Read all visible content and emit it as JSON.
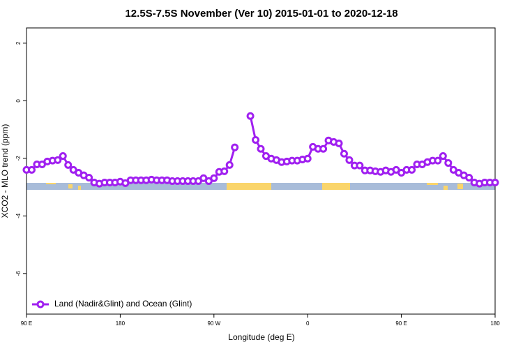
{
  "chart_data": {
    "type": "line",
    "title": "12.5S-7.5S November (Ver 10)   2015-01-01 to 2020-12-18",
    "x_label": "Longitude (deg E)",
    "y_label": "XCO2 - MLO trend (ppm)",
    "xlim": [
      90,
      540
    ],
    "xticks": [
      {
        "value": 90,
        "label": "90 E"
      },
      180,
      {
        "value": 270,
        "label": "90 W"
      },
      {
        "value": 360,
        "label": "0"
      },
      {
        "value": 450,
        "label": "90 E"
      },
      {
        "value": 540,
        "label": "180"
      }
    ],
    "ylim": [
      -7.41,
      2.53
    ],
    "yticks": [
      2,
      0,
      -2,
      -4,
      -6
    ],
    "legend": "bottom-left",
    "x": [
      90,
      95,
      100,
      105,
      110,
      115,
      120,
      125,
      130,
      135,
      140,
      145,
      150,
      155,
      160,
      165,
      170,
      175,
      180,
      185,
      190,
      195,
      200,
      205,
      210,
      215,
      220,
      225,
      230,
      235,
      240,
      245,
      250,
      255,
      260,
      265,
      270,
      275,
      280,
      285,
      290,
      295,
      300,
      305,
      310,
      315,
      320,
      325,
      330,
      335,
      340,
      345,
      350,
      355,
      360,
      365,
      370,
      375,
      380,
      385,
      390,
      395,
      400,
      405,
      410,
      415,
      420,
      425,
      430,
      435,
      440,
      445,
      450,
      455,
      460,
      465,
      470,
      475,
      480,
      485,
      490,
      495,
      500,
      505,
      510,
      515,
      520,
      525,
      530,
      535,
      540
    ],
    "series": [
      {
        "name": "Land (Nadir&Glint) and Ocean (Glint)",
        "color": "#a020f0",
        "values": [
          -2.4,
          -2.4,
          -2.21,
          -2.21,
          -2.11,
          -2.08,
          -2.06,
          -1.92,
          -2.23,
          -2.4,
          -2.5,
          -2.59,
          -2.67,
          -2.84,
          -2.88,
          -2.84,
          -2.84,
          -2.84,
          -2.81,
          -2.86,
          -2.76,
          -2.76,
          -2.76,
          -2.76,
          -2.74,
          -2.76,
          -2.76,
          -2.76,
          -2.79,
          -2.79,
          -2.79,
          -2.79,
          -2.79,
          -2.79,
          -2.69,
          -2.79,
          -2.69,
          -2.47,
          -2.45,
          -2.23,
          -1.62,
          null,
          null,
          -0.53,
          -1.36,
          -1.67,
          -1.92,
          -2.01,
          -2.06,
          -2.13,
          -2.11,
          -2.08,
          -2.08,
          -2.04,
          -2.01,
          -1.6,
          -1.67,
          -1.67,
          -1.38,
          -1.43,
          -1.48,
          -1.84,
          -2.06,
          -2.25,
          -2.25,
          -2.42,
          -2.42,
          -2.45,
          -2.47,
          -2.42,
          -2.47,
          -2.4,
          -2.5,
          -2.4,
          -2.4,
          -2.21,
          -2.21,
          -2.13,
          -2.08,
          -2.08,
          -1.92,
          -2.16,
          -2.4,
          -2.5,
          -2.59,
          -2.67,
          -2.84,
          -2.88,
          -2.84,
          -2.84,
          -2.84
        ]
      }
    ]
  }
}
